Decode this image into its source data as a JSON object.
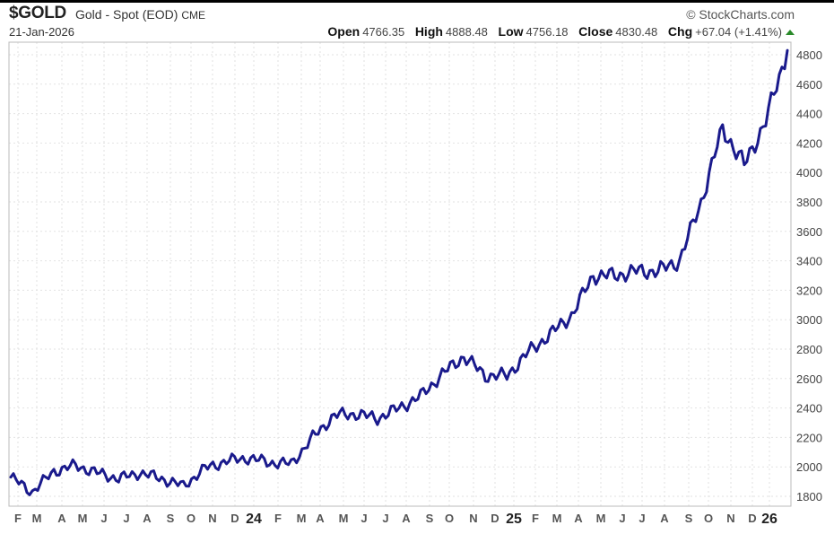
{
  "header": {
    "symbol": "$GOLD",
    "name": "Gold - Spot (EOD)",
    "exchange": "CME",
    "date": "21-Jan-2026",
    "brand": "© StockCharts.com",
    "open_label": "Open",
    "open": "4766.35",
    "high_label": "High",
    "high": "4888.48",
    "low_label": "Low",
    "low": "4756.18",
    "close_label": "Close",
    "close": "4830.48",
    "chg_label": "Chg",
    "chg": "+67.04 (+1.41%)",
    "chg_direction": "up",
    "up_color": "#2a8a2a"
  },
  "colors": {
    "line": "#1a1a8c",
    "grid": "#dddddd",
    "frame": "#bbbbbb"
  },
  "chart_data": {
    "type": "line",
    "title": "$GOLD Gold - Spot (EOD) CME",
    "xlabel": "",
    "ylabel": "",
    "ylim": [
      1750,
      4900
    ],
    "yticks": [
      1800,
      2000,
      2200,
      2400,
      2600,
      2800,
      3000,
      3200,
      3400,
      3600,
      3800,
      4000,
      4200,
      4400,
      4600,
      4800
    ],
    "grid": true,
    "legend": "none",
    "x_tick_labels": [
      "F",
      "M",
      "A",
      "M",
      "J",
      "J",
      "A",
      "S",
      "O",
      "N",
      "D",
      "24",
      "F",
      "M",
      "A",
      "M",
      "J",
      "J",
      "A",
      "S",
      "O",
      "N",
      "D",
      "25",
      "F",
      "M",
      "A",
      "M",
      "J",
      "J",
      "A",
      "S",
      "O",
      "N",
      "D",
      "26"
    ],
    "x": [
      "2023-01",
      "2023-02",
      "2023-03",
      "2023-04",
      "2023-05",
      "2023-06",
      "2023-07",
      "2023-08",
      "2023-09",
      "2023-10",
      "2023-11",
      "2023-12",
      "2024-01",
      "2024-02",
      "2024-03",
      "2024-04",
      "2024-05",
      "2024-06",
      "2024-07",
      "2024-08",
      "2024-09",
      "2024-10",
      "2024-11",
      "2024-12",
      "2025-01",
      "2025-02",
      "2025-03",
      "2025-04",
      "2025-05",
      "2025-06",
      "2025-07",
      "2025-08",
      "2025-09",
      "2025-10",
      "2025-11",
      "2025-12",
      "2026-01"
    ],
    "series": [
      {
        "name": "$GOLD Close",
        "values": [
          1930,
          1830,
          1970,
          2010,
          1960,
          1920,
          1960,
          1920,
          1870,
          1990,
          2040,
          2060,
          2030,
          2020,
          2200,
          2350,
          2360,
          2330,
          2400,
          2480,
          2630,
          2750,
          2620,
          2620,
          2780,
          2900,
          3030,
          3300,
          3300,
          3330,
          3330,
          3400,
          3800,
          4300,
          4050,
          4350,
          4830
        ]
      }
    ]
  }
}
